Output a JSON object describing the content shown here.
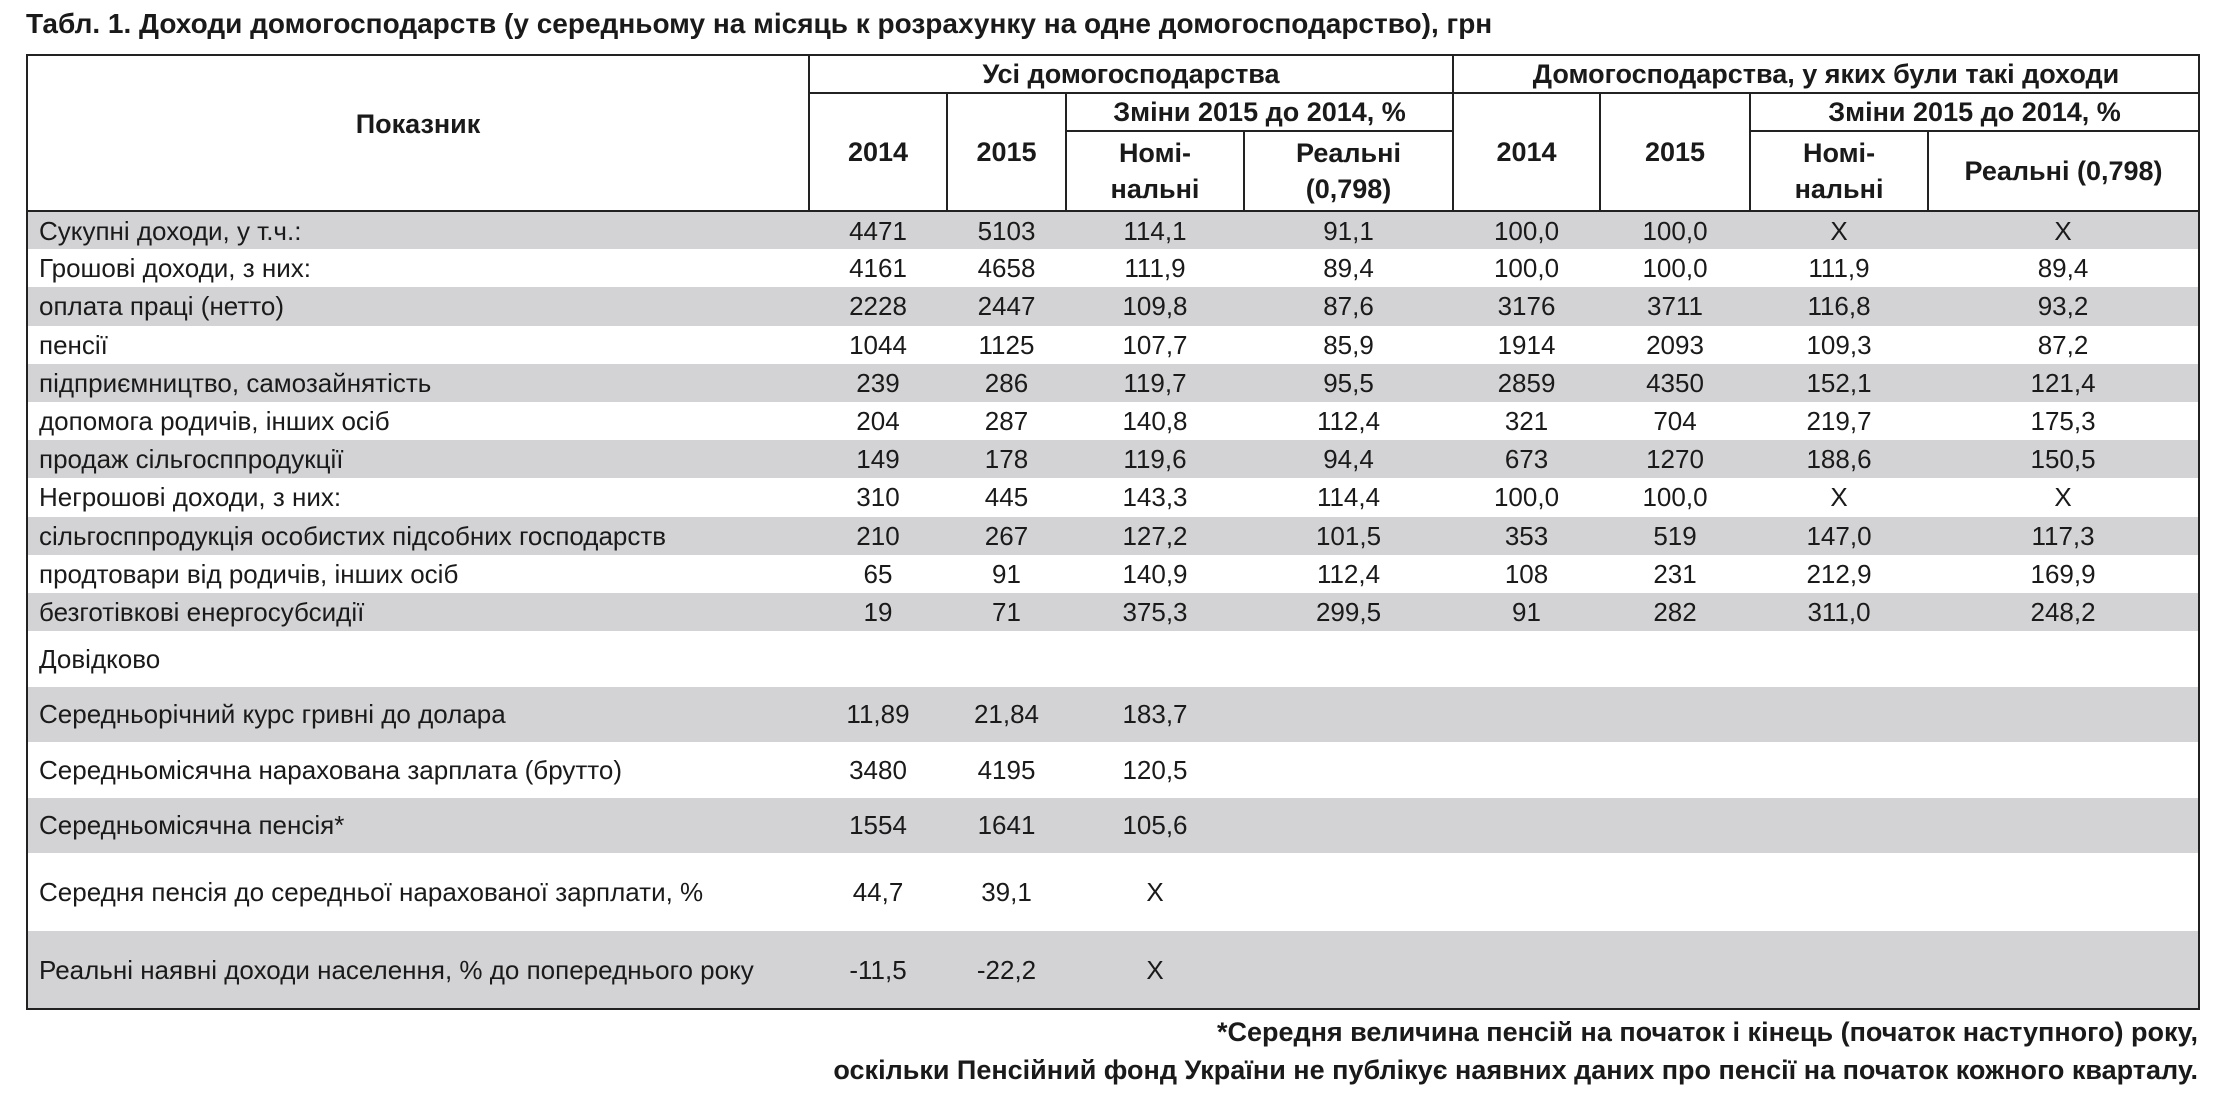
{
  "title": "Табл. 1. Доходи домогосподарств (у середньому на місяць к розрахунку на одне домогосподарство), грн",
  "header": {
    "indicator": "Показник",
    "group_all": "Усі домогосподарства",
    "group_with": "Домогосподарства, у яких були такі доходи",
    "changes": "Зміни 2015 до 2014, %",
    "y2014": "2014",
    "y2015": "2015",
    "nominal": "Номі-нальні",
    "real": "Реальні (0,798)"
  },
  "rows": [
    {
      "label": "Сукупні доходи, у т.ч.:",
      "values": [
        "4471",
        "5103",
        "114,1",
        "91,1",
        "100,0",
        "100,0",
        "X",
        "X"
      ]
    },
    {
      "label": "Грошові доходи, з них:",
      "values": [
        "4161",
        "4658",
        "111,9",
        "89,4",
        "100,0",
        "100,0",
        "111,9",
        "89,4"
      ]
    },
    {
      "label": "оплата праці (нетто)",
      "values": [
        "2228",
        "2447",
        "109,8",
        "87,6",
        "3176",
        "3711",
        "116,8",
        "93,2"
      ]
    },
    {
      "label": "пенсії",
      "values": [
        "1044",
        "1125",
        "107,7",
        "85,9",
        "1914",
        "2093",
        "109,3",
        "87,2"
      ]
    },
    {
      "label": "підприємництво, самозайнятість",
      "values": [
        "239",
        "286",
        "119,7",
        "95,5",
        "2859",
        "4350",
        "152,1",
        "121,4"
      ]
    },
    {
      "label": "допомога родичів, інших осіб",
      "values": [
        "204",
        "287",
        "140,8",
        "112,4",
        "321",
        "704",
        "219,7",
        "175,3"
      ]
    },
    {
      "label": "продаж сільгосппродукції",
      "values": [
        "149",
        "178",
        "119,6",
        "94,4",
        "673",
        "1270",
        "188,6",
        "150,5"
      ]
    },
    {
      "label": "Негрошові доходи, з них:",
      "values": [
        "310",
        "445",
        "143,3",
        "114,4",
        "100,0",
        "100,0",
        "X",
        "X"
      ]
    },
    {
      "label": "сільгосппродукція особистих підсобних господарств",
      "values": [
        "210",
        "267",
        "127,2",
        "101,5",
        "353",
        "519",
        "147,0",
        "117,3"
      ]
    },
    {
      "label": "продтовари від родичів, інших осіб",
      "values": [
        "65",
        "91",
        "140,9",
        "112,4",
        "108",
        "231",
        "212,9",
        "169,9"
      ]
    },
    {
      "label": "безготівкові енергосубсидії",
      "values": [
        "19",
        "71",
        "375,3",
        "299,5",
        "91",
        "282",
        "311,0",
        "248,2"
      ]
    }
  ],
  "reference_label": "Довідково",
  "reference_rows": [
    {
      "label": "Середньорічний курс гривні до долара",
      "values": [
        "11,89",
        "21,84",
        "183,7"
      ]
    },
    {
      "label": "Середньомісячна нарахована зарплата (брутто)",
      "values": [
        "3480",
        "4195",
        "120,5"
      ]
    },
    {
      "label": "Середньомісячна пенсія*",
      "values": [
        "1554",
        "1641",
        "105,6"
      ]
    },
    {
      "label": "Середня пенсія до середньої нарахованої зарплати, %",
      "values": [
        "44,7",
        "39,1",
        "X"
      ]
    },
    {
      "label": "Реальні наявні доходи населення, % до попереднього року",
      "values": [
        "-11,5",
        "-22,2",
        "X"
      ]
    }
  ],
  "footnote": [
    "*Середня величина пенсій на початок і кінець (початок наступного) року,",
    "оскільки Пенсійний фонд України не публікує наявних даних про пенсії на початок кожного кварталу."
  ],
  "colors": {
    "stripe": "#d3d3d5",
    "border": "#222222"
  }
}
